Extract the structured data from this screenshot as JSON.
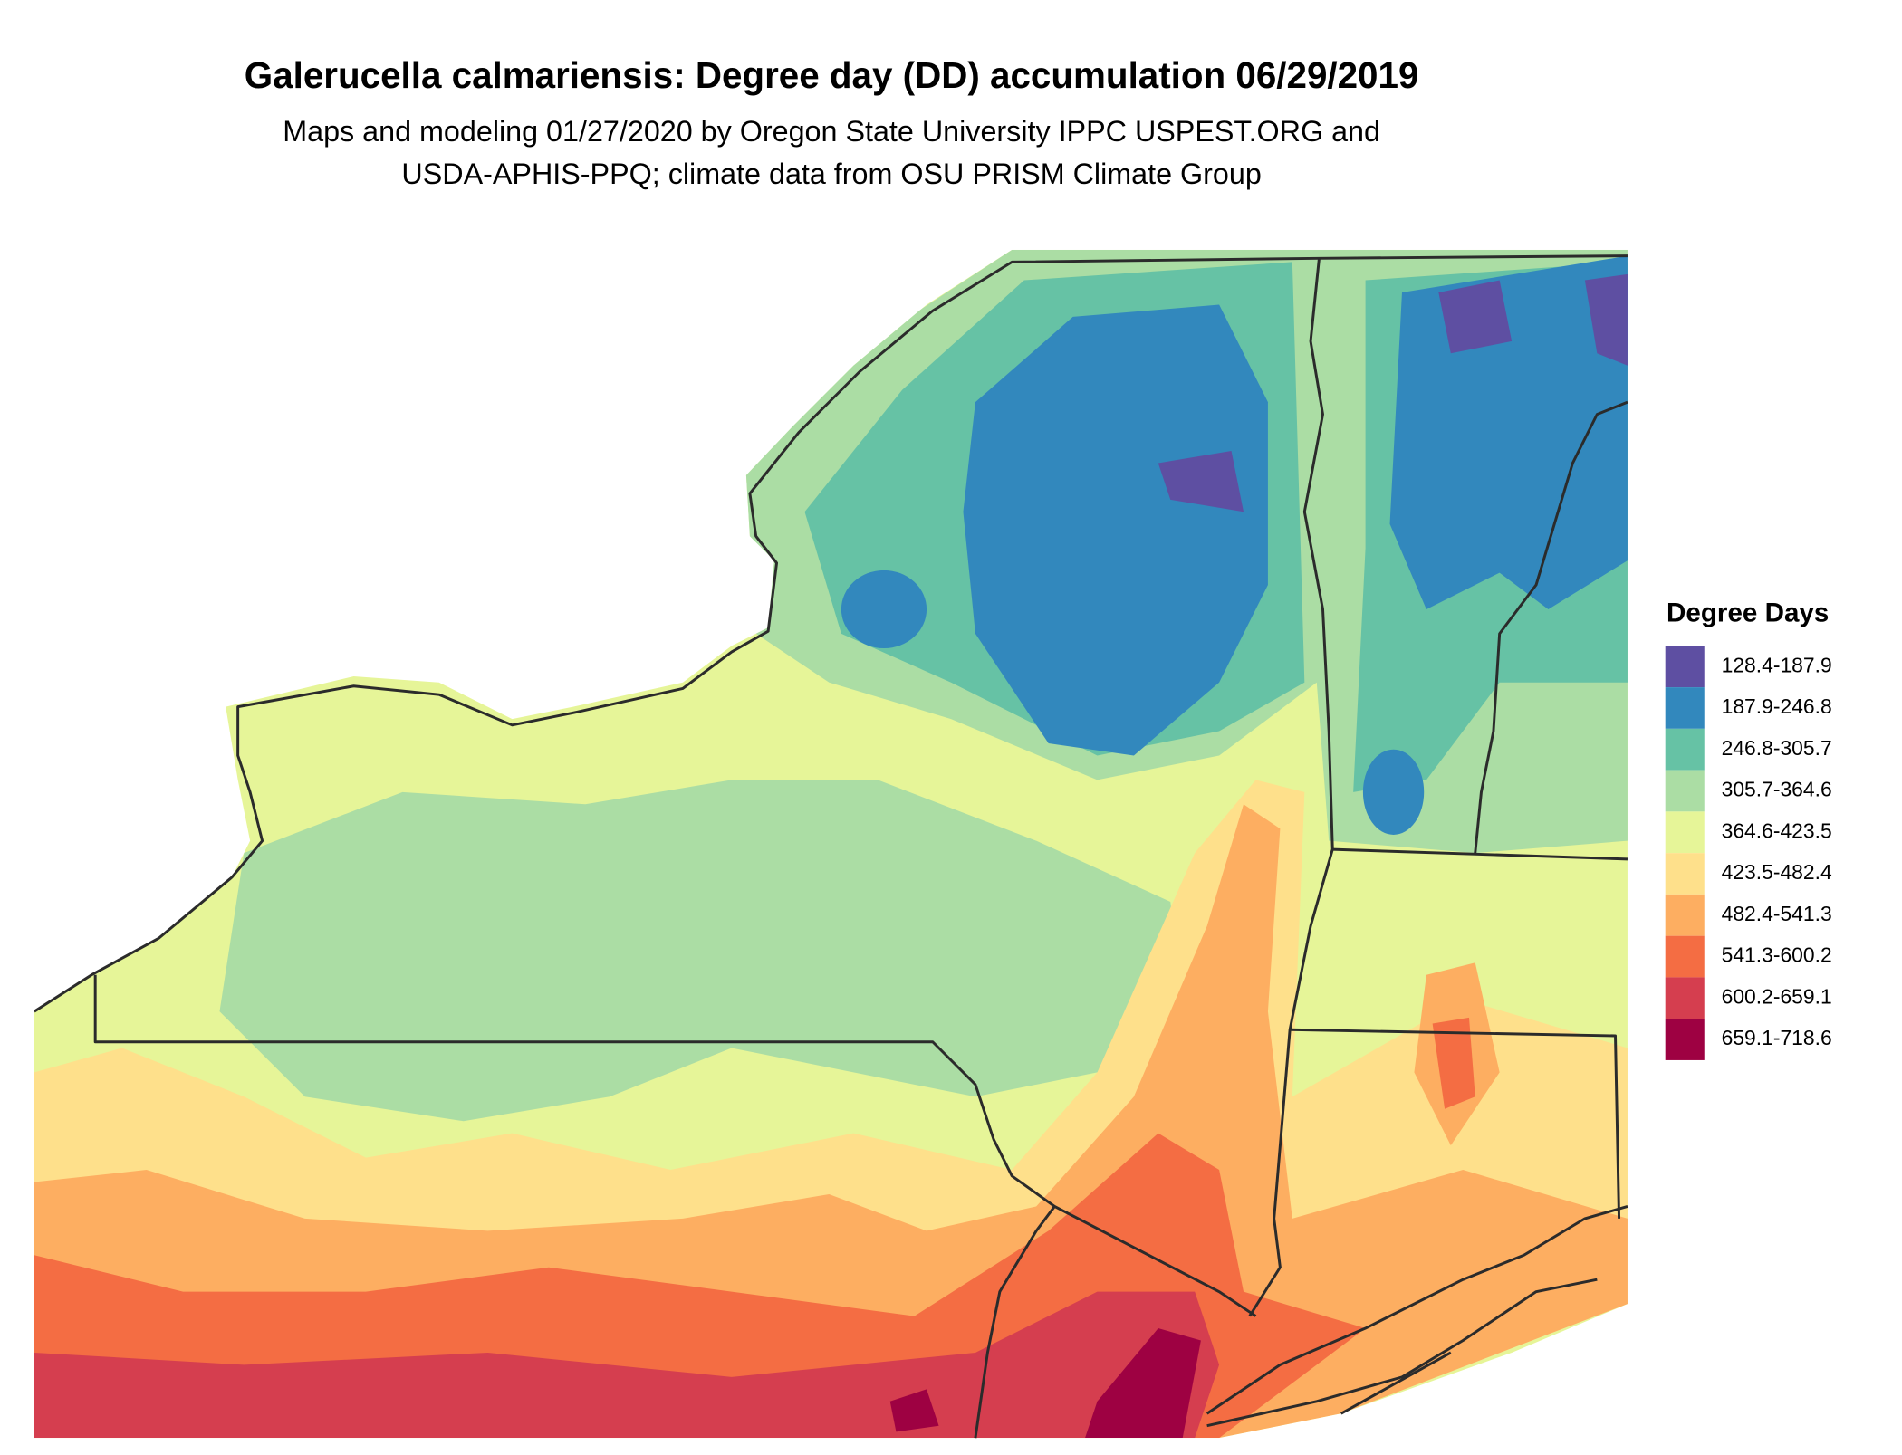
{
  "title": "Galerucella calmariensis: Degree day (DD) accumulation 06/29/2019",
  "subtitle": [
    "Maps and modeling 01/27/2020 by Oregon State University IPPC USPEST.ORG and",
    "USDA-APHIS-PPQ; climate data from OSU PRISM Climate Group"
  ],
  "legend": {
    "title": "Degree Days",
    "items": [
      {
        "label": "128.4-187.9",
        "color": "#5e4fa2"
      },
      {
        "label": "187.9-246.8",
        "color": "#3288bd"
      },
      {
        "label": "246.8-305.7",
        "color": "#66c2a5"
      },
      {
        "label": "305.7-364.6",
        "color": "#abdda4"
      },
      {
        "label": "364.6-423.5",
        "color": "#e6f598"
      },
      {
        "label": "423.5-482.4",
        "color": "#fee08b"
      },
      {
        "label": "482.4-541.3",
        "color": "#fdae61"
      },
      {
        "label": "541.3-600.2",
        "color": "#f46d43"
      },
      {
        "label": "600.2-659.1",
        "color": "#d53e4f"
      },
      {
        "label": "659.1-718.6",
        "color": "#9e0142"
      }
    ]
  }
}
